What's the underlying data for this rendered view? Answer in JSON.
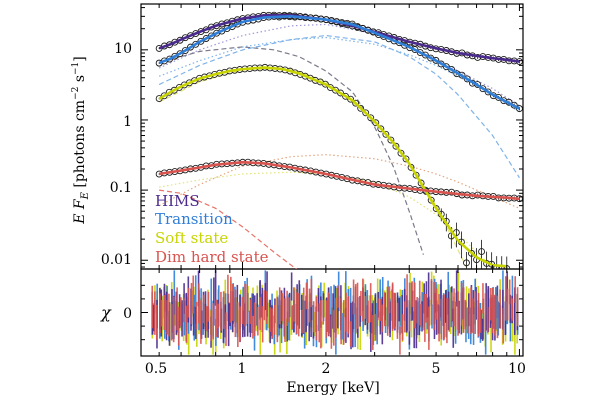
{
  "chart_data": [
    {
      "type": "scatter",
      "xscale": "log",
      "yscale": "log",
      "xlim": [
        0.43,
        10.3
      ],
      "ylim": [
        0.0075,
        45
      ],
      "ylabel_parts": {
        "prefix": "E F",
        "sub": "E",
        "open": " [photons cm",
        "exp1": "−2",
        "mid": " s",
        "exp2": "−1",
        "close": "]"
      },
      "yticks": [
        {
          "value": 0.01,
          "label": "0.01"
        },
        {
          "value": 0.1,
          "label": "0.1"
        },
        {
          "value": 1,
          "label": "1"
        },
        {
          "value": 10,
          "label": "10"
        }
      ],
      "legend_position": "bottom-left",
      "series": [
        {
          "name": "HIMS",
          "color": "#4a2a8c",
          "data_color": "#2a1a5e",
          "x": [
            0.5,
            0.55,
            0.6,
            0.7,
            0.8,
            0.9,
            1.0,
            1.2,
            1.5,
            2.0,
            2.5,
            3.0,
            4.0,
            5.0,
            6.0,
            7.0,
            8.0,
            9.0,
            10.0
          ],
          "y": [
            10.5,
            12,
            14,
            18,
            22,
            25,
            28,
            31,
            31,
            27,
            22,
            18,
            13,
            10.5,
            9,
            8.2,
            7.6,
            7.2,
            6.8
          ],
          "components": [
            {
              "style": "dotted",
              "color": "#9e98d8",
              "x": [
                0.5,
                0.7,
                1.0,
                1.5,
                2.0,
                3.0,
                4.0,
                5.0,
                6.0,
                8.0,
                10.0
              ],
              "y": [
                5.5,
                10,
                16,
                22,
                23,
                17,
                11,
                7.5,
                5,
                2.8,
                1.6
              ]
            }
          ]
        },
        {
          "name": "Transition",
          "color": "#2f7ed8",
          "data_color": "#1f4fa0",
          "x": [
            0.5,
            0.55,
            0.6,
            0.7,
            0.8,
            0.9,
            1.0,
            1.2,
            1.5,
            2.0,
            2.5,
            3.0,
            4.0,
            5.0,
            6.0,
            7.0,
            8.0,
            9.0,
            10.0
          ],
          "y": [
            6.5,
            7.5,
            9,
            13,
            17,
            21,
            25,
            29,
            30,
            27,
            23,
            17.5,
            11,
            7,
            4.6,
            3.2,
            2.3,
            1.8,
            1.45
          ],
          "components": [
            {
              "style": "dotted",
              "color": "#7fb3e8",
              "x": [
                0.5,
                0.7,
                1.0,
                1.5,
                2.0,
                3.0,
                4.0,
                5.0,
                6.0,
                8.0,
                10.0
              ],
              "y": [
                4.2,
                7,
                11,
                14,
                15,
                12,
                8.5,
                6,
                4.2,
                2.3,
                1.3
              ]
            },
            {
              "style": "dashed",
              "color": "#7fb3e8",
              "x": [
                0.5,
                0.7,
                1.0,
                1.5,
                2.0,
                3.0,
                4.0,
                5.0,
                6.0,
                8.0,
                10.0
              ],
              "y": [
                3.2,
                6,
                10,
                14,
                16,
                13,
                8,
                4.5,
                2.3,
                0.6,
                0.15
              ]
            }
          ]
        },
        {
          "name": "Soft state",
          "color": "#c8d400",
          "data_color": "#c8d400",
          "x": [
            0.5,
            0.55,
            0.6,
            0.7,
            0.8,
            0.9,
            1.0,
            1.2,
            1.4,
            1.6,
            2.0,
            2.5,
            3.0,
            3.5,
            4.0,
            5.0,
            6.0,
            7.0,
            8.0,
            9.0
          ],
          "y": [
            2.0,
            2.5,
            3.0,
            3.9,
            4.5,
            5.0,
            5.3,
            5.6,
            5.3,
            4.6,
            3.2,
            1.9,
            0.95,
            0.48,
            0.24,
            0.055,
            0.019,
            0.011,
            0.0085,
            0.0082
          ],
          "components": [
            {
              "style": "dashed",
              "color": "#e3e47a",
              "x": [
                0.5,
                0.7,
                1.0,
                1.5,
                2.0,
                3.0,
                4.0,
                5.0,
                6.0,
                7.0,
                8.0,
                9.0
              ],
              "y": [
                1.8,
                3.5,
                5.2,
                5.4,
                3.5,
                1,
                0.25,
                0.06,
                0.014,
                0.004,
                0.0012,
                0.0004
              ]
            },
            {
              "style": "dotted",
              "color": "#e3e47a",
              "x": [
                0.5,
                0.7,
                1.0,
                1.5,
                2.0,
                3.0,
                4.0,
                5.0,
                6.0,
                7.0,
                8.0,
                9.0
              ],
              "y": [
                0.11,
                0.14,
                0.17,
                0.18,
                0.17,
                0.13,
                0.08,
                0.045,
                0.024,
                0.013,
                0.008,
                0.006
              ]
            }
          ]
        },
        {
          "name": "Dim hard state",
          "color": "#d9534f",
          "data_color": "#b52a2a",
          "x": [
            0.5,
            0.6,
            0.7,
            0.8,
            0.9,
            1.0,
            1.2,
            1.5,
            2.0,
            2.5,
            3.0,
            4.0,
            5.0,
            6.0,
            7.0,
            8.0,
            9.0,
            10.0
          ],
          "y": [
            0.17,
            0.19,
            0.21,
            0.23,
            0.24,
            0.25,
            0.24,
            0.21,
            0.17,
            0.14,
            0.12,
            0.105,
            0.095,
            0.088,
            0.083,
            0.08,
            0.078,
            0.075
          ],
          "components": [
            {
              "style": "dotted",
              "color": "#e5a57f",
              "x": [
                0.5,
                0.7,
                1.0,
                1.5,
                2.0,
                3.0,
                4.0,
                5.0,
                6.0,
                7.0,
                8.0,
                10.0
              ],
              "y": [
                0.06,
                0.12,
                0.22,
                0.3,
                0.32,
                0.28,
                0.22,
                0.17,
                0.13,
                0.1,
                0.08,
                0.055
              ]
            },
            {
              "style": "dashed",
              "color": "#e8746a",
              "x": [
                0.5,
                0.6,
                0.8,
                1.0,
                1.3,
                1.6
              ],
              "y": [
                0.1,
                0.09,
                0.055,
                0.03,
                0.013,
                0.007
              ]
            }
          ]
        },
        {
          "name": "",
          "color": "#7a7a8c",
          "data_color": "",
          "line_only": true,
          "x": [],
          "y": [],
          "components": [
            {
              "style": "dashed",
              "color": "#7a7a8c",
              "x": [
                0.5,
                0.7,
                1.0,
                1.3,
                1.6,
                2.0,
                2.5,
                3.0,
                3.5,
                4.0,
                4.5
              ],
              "y": [
                6.5,
                9.5,
                11,
                10,
                8,
                5,
                2.5,
                0.8,
                0.22,
                0.05,
                0.012
              ]
            }
          ]
        }
      ]
    },
    {
      "type": "scatter",
      "xscale": "log",
      "xlim": [
        0.43,
        10.3
      ],
      "ylim": [
        -3.2,
        3.2
      ],
      "xlabel": "Energy [keV]",
      "ylabel": "χ",
      "yticks": [
        {
          "value": 0,
          "label": "0"
        }
      ],
      "xticks": [
        {
          "value": 0.5,
          "label": "0.5"
        },
        {
          "value": 1,
          "label": "1"
        },
        {
          "value": 2,
          "label": "2"
        },
        {
          "value": 5,
          "label": "5"
        },
        {
          "value": 10,
          "label": "10"
        }
      ],
      "residual_series": [
        {
          "name": "Soft state residuals",
          "color": "#c8d400"
        },
        {
          "name": "Transition residuals",
          "color": "#2f7ed8"
        },
        {
          "name": "HIMS residuals",
          "color": "#4a2a8c"
        },
        {
          "name": "Dim hard state residuals",
          "color": "#d9534f"
        }
      ]
    }
  ]
}
